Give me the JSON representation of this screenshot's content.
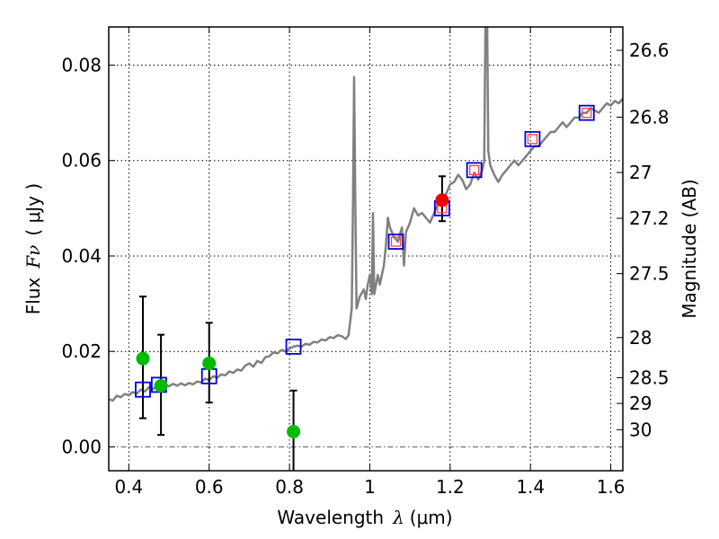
{
  "chart_data": {
    "type": "scatter",
    "xlabel_prefix": "Wavelength",
    "xlabel_symbol": "λ",
    "xlabel_unit": "(μm)",
    "ylabel_prefix": "Flux",
    "ylabel_symbol": "Fν",
    "ylabel_unit": "( μJy )",
    "y2label": "Magnitude (AB)",
    "xlim": [
      0.35,
      1.63
    ],
    "ylim": [
      -0.005,
      0.088
    ],
    "grid": true,
    "x_ticks": [
      0.4,
      0.6,
      0.8,
      1.0,
      1.2,
      1.4,
      1.6
    ],
    "x_tick_labels": [
      "0.4",
      "0.6",
      "0.8",
      "1",
      "1.2",
      "1.4",
      "1.6"
    ],
    "y_ticks": [
      0.0,
      0.02,
      0.04,
      0.06,
      0.08
    ],
    "y_tick_labels": [
      "0.00",
      "0.02",
      "0.04",
      "0.06",
      "0.08"
    ],
    "y2_ticks": [
      {
        "label": "26.6",
        "flux": 0.0831
      },
      {
        "label": "26.8",
        "flux": 0.0691
      },
      {
        "label": "27",
        "flux": 0.0575
      },
      {
        "label": "27.2",
        "flux": 0.0479
      },
      {
        "label": "27.5",
        "flux": 0.0363
      },
      {
        "label": "28",
        "flux": 0.0229
      },
      {
        "label": "28.5",
        "flux": 0.0145
      },
      {
        "label": "29",
        "flux": 0.0091
      },
      {
        "label": "30",
        "flux": 0.0036
      }
    ],
    "zero_line": 0.0,
    "colors": {
      "sed": "#808080",
      "model": "#0000dd",
      "model_inner": "#ff4040",
      "green": "#00bb00",
      "red": "#ee0000",
      "errorbar": "#000000",
      "zeroline": "#606060"
    },
    "sed_model": [
      [
        0.35,
        0.01
      ],
      [
        0.36,
        0.0097
      ],
      [
        0.37,
        0.0107
      ],
      [
        0.38,
        0.0104
      ],
      [
        0.39,
        0.0111
      ],
      [
        0.4,
        0.0108
      ],
      [
        0.41,
        0.0115
      ],
      [
        0.42,
        0.0112
      ],
      [
        0.43,
        0.012
      ],
      [
        0.44,
        0.0116
      ],
      [
        0.45,
        0.0125
      ],
      [
        0.46,
        0.0121
      ],
      [
        0.47,
        0.0128
      ],
      [
        0.48,
        0.0124
      ],
      [
        0.49,
        0.0131
      ],
      [
        0.5,
        0.0127
      ],
      [
        0.51,
        0.0132
      ],
      [
        0.52,
        0.0128
      ],
      [
        0.53,
        0.0133
      ],
      [
        0.54,
        0.0129
      ],
      [
        0.55,
        0.0134
      ],
      [
        0.56,
        0.0131
      ],
      [
        0.57,
        0.0137
      ],
      [
        0.58,
        0.0135
      ],
      [
        0.59,
        0.0143
      ],
      [
        0.6,
        0.014
      ],
      [
        0.61,
        0.0148
      ],
      [
        0.62,
        0.0145
      ],
      [
        0.63,
        0.0152
      ],
      [
        0.64,
        0.015
      ],
      [
        0.65,
        0.0158
      ],
      [
        0.66,
        0.0155
      ],
      [
        0.67,
        0.0162
      ],
      [
        0.68,
        0.016
      ],
      [
        0.69,
        0.017
      ],
      [
        0.7,
        0.0175
      ],
      [
        0.71,
        0.0168
      ],
      [
        0.72,
        0.018
      ],
      [
        0.73,
        0.0176
      ],
      [
        0.74,
        0.0188
      ],
      [
        0.75,
        0.019
      ],
      [
        0.76,
        0.0198
      ],
      [
        0.77,
        0.0196
      ],
      [
        0.78,
        0.0203
      ],
      [
        0.79,
        0.02
      ],
      [
        0.8,
        0.0206
      ],
      [
        0.81,
        0.021
      ],
      [
        0.82,
        0.0212
      ],
      [
        0.83,
        0.021
      ],
      [
        0.84,
        0.0216
      ],
      [
        0.85,
        0.0214
      ],
      [
        0.86,
        0.022
      ],
      [
        0.87,
        0.0219
      ],
      [
        0.88,
        0.0225
      ],
      [
        0.89,
        0.0223
      ],
      [
        0.9,
        0.023
      ],
      [
        0.91,
        0.0228
      ],
      [
        0.92,
        0.0234
      ],
      [
        0.93,
        0.0232
      ],
      [
        0.94,
        0.0226
      ],
      [
        0.947,
        0.0234
      ],
      [
        0.955,
        0.029
      ],
      [
        0.958,
        0.05
      ],
      [
        0.961,
        0.0775
      ],
      [
        0.964,
        0.05
      ],
      [
        0.967,
        0.029
      ],
      [
        0.975,
        0.0315
      ],
      [
        0.985,
        0.033
      ],
      [
        0.99,
        0.031
      ],
      [
        0.995,
        0.034
      ],
      [
        1.0,
        0.036
      ],
      [
        1.005,
        0.032
      ],
      [
        1.008,
        0.049
      ],
      [
        1.011,
        0.032
      ],
      [
        1.02,
        0.036
      ],
      [
        1.025,
        0.034
      ],
      [
        1.035,
        0.038
      ],
      [
        1.04,
        0.042
      ],
      [
        1.045,
        0.048
      ],
      [
        1.05,
        0.046
      ],
      [
        1.06,
        0.044
      ],
      [
        1.07,
        0.043
      ],
      [
        1.08,
        0.046
      ],
      [
        1.085,
        0.038
      ],
      [
        1.09,
        0.045
      ],
      [
        1.1,
        0.047
      ],
      [
        1.11,
        0.05
      ],
      [
        1.12,
        0.0485
      ],
      [
        1.13,
        0.049
      ],
      [
        1.14,
        0.048
      ],
      [
        1.15,
        0.047
      ],
      [
        1.16,
        0.049
      ],
      [
        1.17,
        0.051
      ],
      [
        1.18,
        0.052
      ],
      [
        1.19,
        0.053
      ],
      [
        1.2,
        0.055
      ],
      [
        1.21,
        0.0555
      ],
      [
        1.22,
        0.057
      ],
      [
        1.23,
        0.056
      ],
      [
        1.24,
        0.054
      ],
      [
        1.25,
        0.055
      ],
      [
        1.26,
        0.0575
      ],
      [
        1.27,
        0.056
      ],
      [
        1.28,
        0.058
      ],
      [
        1.285,
        0.06
      ],
      [
        1.288,
        0.09
      ],
      [
        1.292,
        0.09
      ],
      [
        1.295,
        0.062
      ],
      [
        1.3,
        0.059
      ],
      [
        1.31,
        0.057
      ],
      [
        1.32,
        0.0555
      ],
      [
        1.33,
        0.057
      ],
      [
        1.34,
        0.058
      ],
      [
        1.35,
        0.059
      ],
      [
        1.36,
        0.06
      ],
      [
        1.37,
        0.059
      ],
      [
        1.38,
        0.06
      ],
      [
        1.39,
        0.061
      ],
      [
        1.4,
        0.062
      ],
      [
        1.41,
        0.063
      ],
      [
        1.42,
        0.063
      ],
      [
        1.43,
        0.064
      ],
      [
        1.44,
        0.065
      ],
      [
        1.45,
        0.066
      ],
      [
        1.46,
        0.066
      ],
      [
        1.47,
        0.067
      ],
      [
        1.48,
        0.068
      ],
      [
        1.49,
        0.067
      ],
      [
        1.5,
        0.068
      ],
      [
        1.51,
        0.069
      ],
      [
        1.52,
        0.069
      ],
      [
        1.53,
        0.07
      ],
      [
        1.54,
        0.07
      ],
      [
        1.55,
        0.071
      ],
      [
        1.56,
        0.0705
      ],
      [
        1.57,
        0.07
      ],
      [
        1.58,
        0.071
      ],
      [
        1.59,
        0.072
      ],
      [
        1.6,
        0.0715
      ],
      [
        1.61,
        0.0725
      ],
      [
        1.62,
        0.072
      ],
      [
        1.63,
        0.073
      ]
    ],
    "model_photometry": [
      {
        "x": 0.435,
        "y": 0.012,
        "inner": false
      },
      {
        "x": 0.475,
        "y": 0.013,
        "inner": false
      },
      {
        "x": 0.6,
        "y": 0.0148,
        "inner": false
      },
      {
        "x": 0.81,
        "y": 0.021,
        "inner": false
      },
      {
        "x": 1.065,
        "y": 0.043,
        "inner": true
      },
      {
        "x": 1.18,
        "y": 0.05,
        "inner": true
      },
      {
        "x": 1.26,
        "y": 0.058,
        "inner": true
      },
      {
        "x": 1.405,
        "y": 0.0645,
        "inner": true
      },
      {
        "x": 1.54,
        "y": 0.07,
        "inner": true
      }
    ],
    "observed_photometry": [
      {
        "x": 0.435,
        "y": 0.0185,
        "err_low": 0.006,
        "err_high": 0.0315,
        "color": "green"
      },
      {
        "x": 0.48,
        "y": 0.0128,
        "err_low": 0.0025,
        "err_high": 0.0235,
        "color": "green"
      },
      {
        "x": 0.6,
        "y": 0.0175,
        "err_low": 0.0093,
        "err_high": 0.026,
        "color": "green"
      },
      {
        "x": 0.81,
        "y": 0.0032,
        "err_low": -0.0055,
        "err_high": 0.0118,
        "color": "green"
      },
      {
        "x": 1.18,
        "y": 0.0517,
        "err_low": 0.0473,
        "err_high": 0.0567,
        "color": "red"
      }
    ]
  }
}
